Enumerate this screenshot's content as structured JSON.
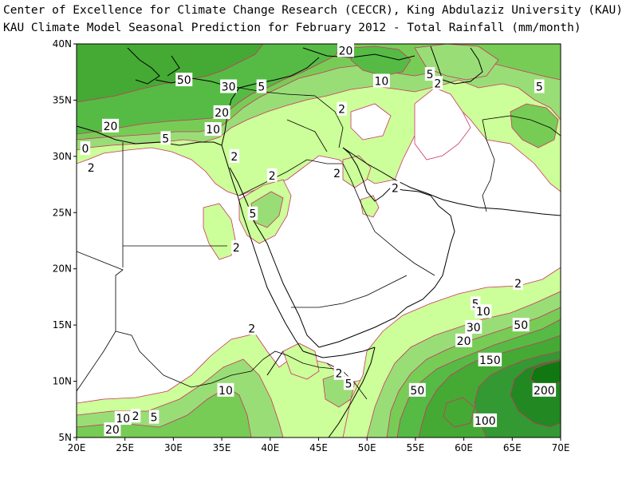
{
  "header": {
    "line1": "Center of Excellence for Climate Change Research (CECCR), King Abdulaziz University (KAU)",
    "line2": "KAU Climate Model Seasonal Prediction for February 2012 - Total Rainfall (mm/month)"
  },
  "map": {
    "lon_range": [
      20,
      70
    ],
    "lat_range": [
      5,
      40
    ],
    "x_ticks": [
      "20E",
      "25E",
      "30E",
      "35E",
      "40E",
      "45E",
      "50E",
      "55E",
      "60E",
      "65E",
      "70E"
    ],
    "y_ticks": [
      "5N",
      "10N",
      "15N",
      "20N",
      "25N",
      "30N",
      "35N",
      "40N"
    ],
    "contour_levels": [
      2,
      5,
      10,
      20,
      30,
      50,
      100,
      150,
      200
    ],
    "fill_colors": {
      "lt2": "#ffffff",
      "2-5": "#ccff99",
      "5-10": "#99dd77",
      "10-20": "#77cc55",
      "20-50": "#55bb44",
      "50-100": "#44aa33",
      "100-150": "#339933",
      "150-200": "#228822",
      "gt200": "#117711"
    },
    "contour_color": "#cc3366",
    "coast_color": "#000000",
    "contour_labels": [
      {
        "text": "20",
        "lon": 47.8,
        "lat": 39.4
      },
      {
        "text": "50",
        "lon": 31.1,
        "lat": 36.8
      },
      {
        "text": "10",
        "lon": 51.5,
        "lat": 36.7
      },
      {
        "text": "5",
        "lon": 56.5,
        "lat": 37.3
      },
      {
        "text": "2",
        "lon": 57.3,
        "lat": 36.5
      },
      {
        "text": "5",
        "lon": 67.8,
        "lat": 36.2
      },
      {
        "text": "30",
        "lon": 35.7,
        "lat": 36.2
      },
      {
        "text": "5",
        "lon": 39.1,
        "lat": 36.2
      },
      {
        "text": "20",
        "lon": 35.0,
        "lat": 33.9
      },
      {
        "text": "2",
        "lon": 47.4,
        "lat": 34.2
      },
      {
        "text": "20",
        "lon": 23.5,
        "lat": 32.7
      },
      {
        "text": "10",
        "lon": 34.1,
        "lat": 32.4
      },
      {
        "text": "5",
        "lon": 29.2,
        "lat": 31.6
      },
      {
        "text": "0",
        "lon": 20.9,
        "lat": 30.7
      },
      {
        "text": "2",
        "lon": 36.3,
        "lat": 30.0
      },
      {
        "text": "2",
        "lon": 21.5,
        "lat": 29.0
      },
      {
        "text": "2",
        "lon": 40.2,
        "lat": 28.3
      },
      {
        "text": "2",
        "lon": 46.9,
        "lat": 28.5
      },
      {
        "text": "2",
        "lon": 52.9,
        "lat": 27.2
      },
      {
        "text": "5",
        "lon": 38.2,
        "lat": 24.9
      },
      {
        "text": "2",
        "lon": 36.5,
        "lat": 21.9
      },
      {
        "text": "2",
        "lon": 65.6,
        "lat": 18.7
      },
      {
        "text": "5",
        "lon": 61.2,
        "lat": 16.9
      },
      {
        "text": "10",
        "lon": 62.0,
        "lat": 16.2
      },
      {
        "text": "30",
        "lon": 61.0,
        "lat": 14.8
      },
      {
        "text": "50",
        "lon": 65.9,
        "lat": 15.0
      },
      {
        "text": "2",
        "lon": 38.1,
        "lat": 14.7
      },
      {
        "text": "20",
        "lon": 60.0,
        "lat": 13.6
      },
      {
        "text": "150",
        "lon": 62.7,
        "lat": 11.9
      },
      {
        "text": "2",
        "lon": 47.1,
        "lat": 10.7
      },
      {
        "text": "5",
        "lon": 48.1,
        "lat": 9.8
      },
      {
        "text": "10",
        "lon": 35.4,
        "lat": 9.2
      },
      {
        "text": "50",
        "lon": 55.2,
        "lat": 9.2
      },
      {
        "text": "200",
        "lon": 68.3,
        "lat": 9.2
      },
      {
        "text": "10",
        "lon": 24.8,
        "lat": 6.7
      },
      {
        "text": "2",
        "lon": 26.1,
        "lat": 6.9
      },
      {
        "text": "5",
        "lon": 28.0,
        "lat": 6.8
      },
      {
        "text": "20",
        "lon": 23.7,
        "lat": 5.7
      },
      {
        "text": "100",
        "lon": 62.2,
        "lat": 6.5
      }
    ]
  }
}
